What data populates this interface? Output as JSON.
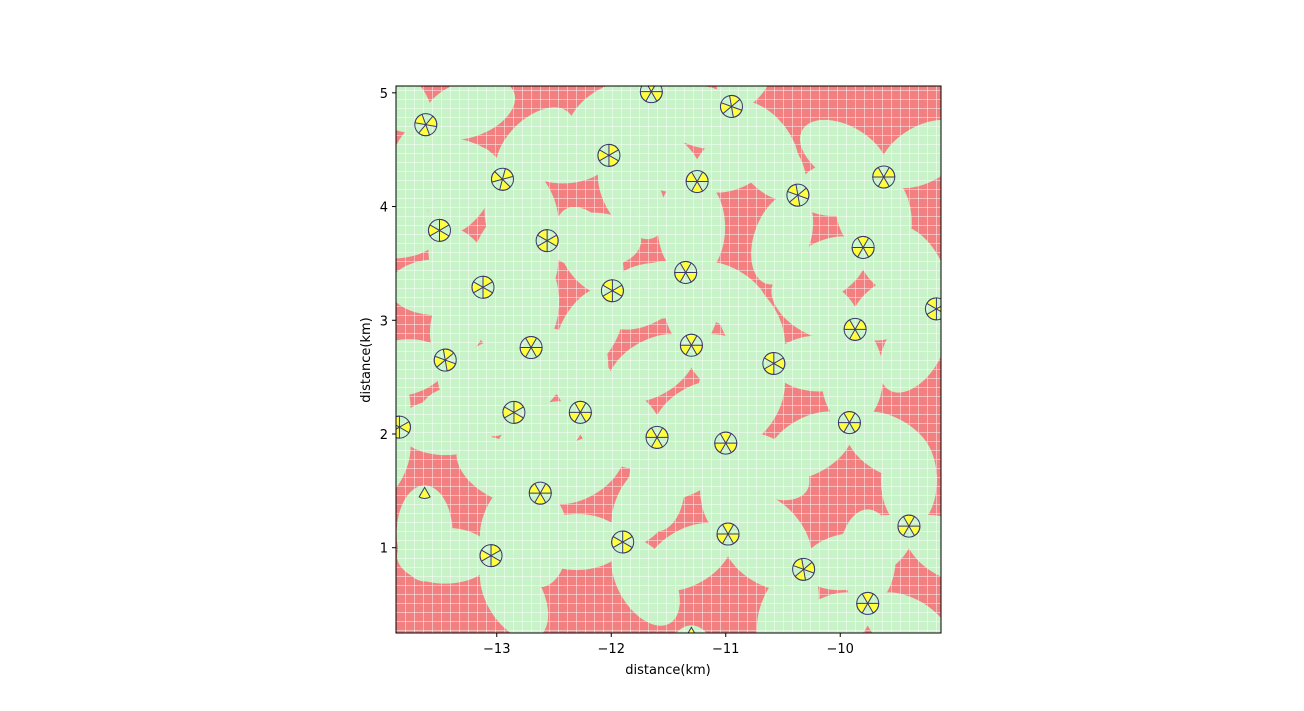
{
  "chart_data": {
    "type": "heatmap",
    "title": "",
    "xlabel": "distance(km)",
    "ylabel": "distance(km)",
    "xlim": [
      -13.88,
      -9.12
    ],
    "ylim": [
      0.25,
      5.06
    ],
    "xticks": [
      -13,
      -12,
      -11,
      -10
    ],
    "xtick_labels": [
      "−13",
      "−12",
      "−11",
      "−10"
    ],
    "yticks": [
      1,
      2,
      3,
      4,
      5
    ],
    "ytick_labels": [
      "1",
      "2",
      "3",
      "4",
      "5"
    ],
    "grid": false,
    "colors": {
      "uncovered": "#f28080",
      "covered": "#c8f2c8",
      "mesh_lines": "#ffffff",
      "antenna_fill": "#ffff40",
      "antenna_edge": "#3a3a6a"
    },
    "sites": [
      {
        "x": -13.62,
        "y": 4.72,
        "azimuths": [
          70,
          190,
          310
        ]
      },
      {
        "x": -12.02,
        "y": 4.45,
        "azimuths": [
          30,
          150,
          270
        ]
      },
      {
        "x": -11.65,
        "y": 5.01,
        "azimuths": [
          0,
          120,
          240
        ]
      },
      {
        "x": -10.95,
        "y": 4.88,
        "azimuths": [
          20,
          140,
          260
        ]
      },
      {
        "x": -12.95,
        "y": 4.24,
        "azimuths": [
          45,
          165,
          285
        ]
      },
      {
        "x": -11.25,
        "y": 4.22,
        "azimuths": [
          60,
          180,
          300
        ]
      },
      {
        "x": -10.37,
        "y": 4.1,
        "azimuths": [
          80,
          200,
          320
        ]
      },
      {
        "x": -9.62,
        "y": 4.26,
        "azimuths": [
          60,
          180,
          300
        ]
      },
      {
        "x": -13.5,
        "y": 3.79,
        "azimuths": [
          30,
          150,
          270
        ]
      },
      {
        "x": -12.56,
        "y": 3.7,
        "azimuths": [
          90,
          210,
          330
        ]
      },
      {
        "x": -9.8,
        "y": 3.64,
        "azimuths": [
          0,
          120,
          240
        ]
      },
      {
        "x": -11.35,
        "y": 3.42,
        "azimuths": [
          0,
          120,
          240
        ]
      },
      {
        "x": -13.12,
        "y": 3.29,
        "azimuths": [
          30,
          150,
          270
        ]
      },
      {
        "x": -11.99,
        "y": 3.26,
        "azimuths": [
          90,
          210,
          330
        ]
      },
      {
        "x": -9.16,
        "y": 3.1,
        "azimuths": [
          90,
          210,
          330
        ]
      },
      {
        "x": -9.87,
        "y": 2.92,
        "azimuths": [
          60,
          180,
          300
        ]
      },
      {
        "x": -12.7,
        "y": 2.76,
        "azimuths": [
          0,
          120,
          240
        ]
      },
      {
        "x": -11.3,
        "y": 2.78,
        "azimuths": [
          0,
          120,
          240
        ]
      },
      {
        "x": -10.58,
        "y": 2.62,
        "azimuths": [
          90,
          210,
          330
        ]
      },
      {
        "x": -13.45,
        "y": 2.65,
        "azimuths": [
          20,
          140,
          260
        ]
      },
      {
        "x": -12.85,
        "y": 2.19,
        "azimuths": [
          30,
          150,
          270
        ]
      },
      {
        "x": -12.27,
        "y": 2.19,
        "azimuths": [
          0,
          120,
          240
        ]
      },
      {
        "x": -9.92,
        "y": 2.1,
        "azimuths": [
          0,
          120,
          240
        ]
      },
      {
        "x": -13.85,
        "y": 2.06,
        "azimuths": [
          90,
          210,
          330
        ]
      },
      {
        "x": -11.6,
        "y": 1.97,
        "azimuths": [
          60,
          180,
          300
        ]
      },
      {
        "x": -11.0,
        "y": 1.92,
        "azimuths": [
          0,
          120,
          240
        ]
      },
      {
        "x": -13.63,
        "y": 1.53,
        "azimuths": [
          180
        ]
      },
      {
        "x": -12.62,
        "y": 1.48,
        "azimuths": [
          60,
          180,
          300
        ]
      },
      {
        "x": -11.9,
        "y": 1.05,
        "azimuths": [
          30,
          150,
          270
        ]
      },
      {
        "x": -10.98,
        "y": 1.12,
        "azimuths": [
          0,
          120,
          240
        ]
      },
      {
        "x": -9.4,
        "y": 1.19,
        "azimuths": [
          0,
          120,
          240
        ]
      },
      {
        "x": -13.05,
        "y": 0.93,
        "azimuths": [
          30,
          150,
          270
        ]
      },
      {
        "x": -10.32,
        "y": 0.81,
        "azimuths": [
          80,
          200,
          320
        ]
      },
      {
        "x": -9.76,
        "y": 0.51,
        "azimuths": [
          0,
          120,
          240
        ]
      },
      {
        "x": -11.3,
        "y": 0.3,
        "azimuths": [
          180
        ]
      }
    ]
  }
}
